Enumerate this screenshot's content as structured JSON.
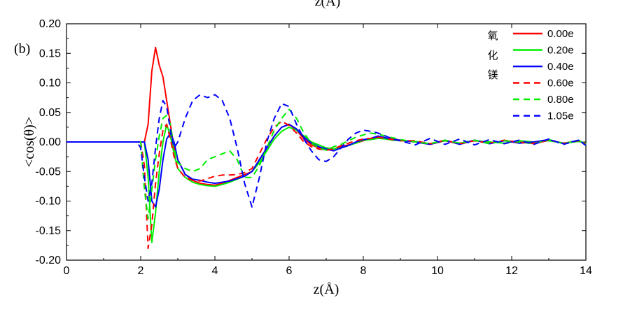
{
  "top_caption": "z(Å)",
  "chart_data": {
    "type": "line",
    "panel_label": "(b)",
    "xlabel": "z(Å)",
    "ylabel": "<cos(θ)>",
    "xlim": [
      0,
      14
    ],
    "ylim": [
      -0.2,
      0.2
    ],
    "xticks": [
      "0",
      "2",
      "4",
      "6",
      "8",
      "10",
      "12",
      "14"
    ],
    "yticks": [
      "0.20",
      "0.15",
      "0.10",
      "0.05",
      "0.00",
      "-0.05",
      "-0.10",
      "-0.15",
      "-0.20"
    ],
    "legend_title": "氧化镁",
    "legend_position": "top-right",
    "series": [
      {
        "name": "0.00e",
        "color": "#ff0000",
        "dash": "solid",
        "x": [
          0,
          2.0,
          2.1,
          2.2,
          2.3,
          2.4,
          2.5,
          2.6,
          2.7,
          2.8,
          2.9,
          3.0,
          3.2,
          3.4,
          3.6,
          3.8,
          4.0,
          4.2,
          4.4,
          4.6,
          4.8,
          5.0,
          5.2,
          5.4,
          5.6,
          5.8,
          6.0,
          6.2,
          6.4,
          6.6,
          6.8,
          7.0,
          7.2,
          7.4,
          7.6,
          7.8,
          8.0,
          8.2,
          8.4,
          8.6,
          8.8,
          9.0,
          9.4,
          9.8,
          10.2,
          10.6,
          11.0,
          11.4,
          11.8,
          12.2,
          12.6,
          13.0,
          13.4,
          13.8,
          14.0
        ],
        "y": [
          0,
          0,
          0,
          0.03,
          0.12,
          0.16,
          0.13,
          0.11,
          0.07,
          0.03,
          -0.01,
          -0.03,
          -0.055,
          -0.065,
          -0.07,
          -0.072,
          -0.073,
          -0.07,
          -0.065,
          -0.06,
          -0.055,
          -0.05,
          -0.03,
          -0.01,
          0.01,
          0.025,
          0.03,
          0.02,
          0.005,
          -0.005,
          -0.01,
          -0.01,
          -0.012,
          -0.008,
          -0.005,
          -0.002,
          0.002,
          0.005,
          0.008,
          0.006,
          0.005,
          0.003,
          0.0,
          -0.004,
          0.002,
          -0.003,
          0.003,
          -0.002,
          0.002,
          0.0,
          -0.003,
          0.003,
          -0.002,
          0.002,
          -0.004
        ]
      },
      {
        "name": "0.20e",
        "color": "#00ee00",
        "dash": "solid",
        "x": [
          0,
          2.0,
          2.1,
          2.2,
          2.3,
          2.4,
          2.5,
          2.6,
          2.7,
          2.8,
          2.9,
          3.0,
          3.2,
          3.4,
          3.6,
          3.8,
          4.0,
          4.2,
          4.4,
          4.6,
          4.8,
          5.0,
          5.2,
          5.4,
          5.6,
          5.8,
          6.0,
          6.2,
          6.4,
          6.6,
          6.8,
          7.0,
          7.2,
          7.4,
          7.6,
          7.8,
          8.0,
          8.2,
          8.4,
          8.6,
          8.8,
          9.0,
          9.4,
          9.8,
          10.2,
          10.6,
          11.0,
          11.4,
          11.8,
          12.2,
          12.6,
          13.0,
          13.4,
          13.8,
          14.0
        ],
        "y": [
          0,
          0,
          0,
          -0.06,
          -0.17,
          -0.12,
          -0.05,
          0.0,
          0.03,
          0.01,
          -0.02,
          -0.045,
          -0.06,
          -0.068,
          -0.072,
          -0.074,
          -0.075,
          -0.072,
          -0.068,
          -0.063,
          -0.058,
          -0.05,
          -0.035,
          -0.015,
          0.005,
          0.018,
          0.025,
          0.02,
          0.01,
          0.0,
          -0.005,
          -0.01,
          -0.012,
          -0.01,
          -0.006,
          -0.002,
          0.003,
          0.004,
          0.006,
          0.005,
          0.003,
          0.002,
          0.001,
          -0.003,
          0.002,
          -0.002,
          0.002,
          0.0,
          -0.002,
          0.002,
          0.0,
          0.002,
          -0.002,
          0.001,
          -0.002
        ]
      },
      {
        "name": "0.40e",
        "color": "#0000ff",
        "dash": "solid",
        "x": [
          0,
          2.0,
          2.1,
          2.2,
          2.3,
          2.4,
          2.5,
          2.6,
          2.7,
          2.8,
          2.9,
          3.0,
          3.2,
          3.4,
          3.6,
          3.8,
          4.0,
          4.2,
          4.4,
          4.6,
          4.8,
          5.0,
          5.2,
          5.4,
          5.6,
          5.8,
          6.0,
          6.2,
          6.4,
          6.6,
          6.8,
          7.0,
          7.2,
          7.4,
          7.6,
          7.8,
          8.0,
          8.2,
          8.4,
          8.6,
          8.8,
          9.0,
          9.4,
          9.8,
          10.2,
          10.6,
          11.0,
          11.4,
          11.8,
          12.2,
          12.6,
          13.0,
          13.4,
          13.8,
          14.0
        ],
        "y": [
          0,
          0,
          0,
          -0.03,
          -0.1,
          -0.11,
          -0.08,
          -0.03,
          0.005,
          0.015,
          0.0,
          -0.03,
          -0.055,
          -0.063,
          -0.065,
          -0.068,
          -0.07,
          -0.068,
          -0.066,
          -0.062,
          -0.058,
          -0.05,
          -0.03,
          -0.01,
          0.01,
          0.025,
          0.03,
          0.022,
          0.008,
          -0.002,
          -0.008,
          -0.012,
          -0.015,
          -0.01,
          -0.006,
          0.0,
          0.004,
          0.006,
          0.01,
          0.007,
          0.004,
          0.003,
          0.0,
          -0.004,
          0.003,
          -0.004,
          0.003,
          -0.003,
          0.002,
          -0.002,
          0.0,
          0.004,
          -0.003,
          0.003,
          -0.005
        ]
      },
      {
        "name": "0.60e",
        "color": "#ff0000",
        "dash": "dash",
        "x": [
          0,
          2.0,
          2.1,
          2.2,
          2.3,
          2.4,
          2.5,
          2.6,
          2.7,
          2.8,
          2.9,
          3.0,
          3.2,
          3.4,
          3.6,
          3.8,
          4.0,
          4.2,
          4.4,
          4.6,
          4.8,
          5.0,
          5.2,
          5.4,
          5.6,
          5.8,
          6.0,
          6.2,
          6.4,
          6.6,
          6.8,
          7.0,
          7.2,
          7.4,
          7.6,
          7.8,
          8.0,
          8.2,
          8.4,
          8.6,
          8.8,
          9.0,
          9.4,
          9.8,
          10.2,
          10.6,
          11.0,
          11.4,
          11.8,
          12.2,
          12.6,
          13.0,
          13.4,
          13.8,
          14.0
        ],
        "y": [
          0,
          0,
          -0.04,
          -0.18,
          -0.14,
          -0.07,
          -0.02,
          0.02,
          0.03,
          0.005,
          -0.025,
          -0.045,
          -0.06,
          -0.065,
          -0.066,
          -0.062,
          -0.058,
          -0.056,
          -0.056,
          -0.055,
          -0.052,
          -0.045,
          -0.02,
          0.005,
          0.025,
          0.035,
          0.028,
          0.015,
          0.0,
          -0.008,
          -0.012,
          -0.014,
          -0.012,
          -0.006,
          -0.002,
          0.002,
          0.005,
          0.006,
          0.008,
          0.006,
          0.004,
          0.002,
          0.002,
          -0.003,
          0.003,
          -0.003,
          0.002,
          -0.002,
          0.003,
          -0.001,
          -0.002,
          0.003,
          -0.002,
          0.002,
          -0.003
        ]
      },
      {
        "name": "0.80e",
        "color": "#00ee00",
        "dash": "dash",
        "x": [
          0,
          2.0,
          2.1,
          2.2,
          2.3,
          2.4,
          2.5,
          2.6,
          2.7,
          2.8,
          2.9,
          3.0,
          3.2,
          3.4,
          3.6,
          3.8,
          4.0,
          4.2,
          4.4,
          4.6,
          4.8,
          5.0,
          5.2,
          5.4,
          5.6,
          5.8,
          6.0,
          6.2,
          6.4,
          6.6,
          6.8,
          7.0,
          7.2,
          7.4,
          7.6,
          7.8,
          8.0,
          8.2,
          8.4,
          8.6,
          8.8,
          9.0,
          9.4,
          9.8,
          10.2,
          10.6,
          11.0,
          11.4,
          11.8,
          12.2,
          12.6,
          13.0,
          13.4,
          13.8,
          14.0
        ],
        "y": [
          0,
          0,
          -0.08,
          -0.13,
          -0.08,
          -0.03,
          0.01,
          0.04,
          0.045,
          0.03,
          -0.01,
          -0.035,
          -0.045,
          -0.05,
          -0.045,
          -0.03,
          -0.025,
          -0.02,
          -0.015,
          -0.03,
          -0.06,
          -0.06,
          -0.04,
          -0.01,
          0.02,
          0.04,
          0.055,
          0.04,
          0.015,
          -0.002,
          -0.01,
          -0.014,
          -0.008,
          -0.004,
          0.002,
          0.008,
          0.012,
          0.015,
          0.013,
          0.01,
          0.007,
          0.004,
          0.0,
          -0.003,
          0.003,
          -0.002,
          0.003,
          -0.003,
          0.002,
          0.0,
          -0.003,
          0.004,
          -0.003,
          0.003,
          -0.004
        ]
      },
      {
        "name": "1.05e",
        "color": "#0000ff",
        "dash": "dash",
        "x": [
          0,
          1.9,
          2.0,
          2.1,
          2.2,
          2.3,
          2.4,
          2.5,
          2.6,
          2.7,
          2.8,
          2.9,
          3.0,
          3.2,
          3.4,
          3.6,
          3.8,
          4.0,
          4.2,
          4.4,
          4.6,
          4.8,
          5.0,
          5.2,
          5.4,
          5.6,
          5.8,
          6.0,
          6.2,
          6.4,
          6.6,
          6.8,
          7.0,
          7.2,
          7.4,
          7.6,
          7.8,
          8.0,
          8.2,
          8.4,
          8.6,
          8.8,
          9.0,
          9.4,
          9.8,
          10.2,
          10.6,
          11.0,
          11.4,
          11.8,
          12.2,
          12.6,
          13.0,
          13.4,
          13.8,
          14.0
        ],
        "y": [
          0,
          0,
          -0.01,
          -0.06,
          -0.1,
          -0.07,
          -0.01,
          0.04,
          0.07,
          0.06,
          0.02,
          -0.01,
          0.0,
          0.04,
          0.07,
          0.08,
          0.075,
          0.08,
          0.07,
          0.04,
          -0.01,
          -0.07,
          -0.11,
          -0.06,
          0.0,
          0.04,
          0.065,
          0.06,
          0.03,
          0.005,
          -0.015,
          -0.03,
          -0.033,
          -0.025,
          -0.01,
          0.005,
          0.015,
          0.02,
          0.018,
          0.015,
          0.01,
          0.005,
          0.002,
          -0.005,
          0.006,
          -0.004,
          0.005,
          -0.005,
          0.004,
          -0.003,
          0.003,
          -0.004,
          0.005,
          -0.004,
          0.003,
          -0.006
        ]
      }
    ]
  }
}
